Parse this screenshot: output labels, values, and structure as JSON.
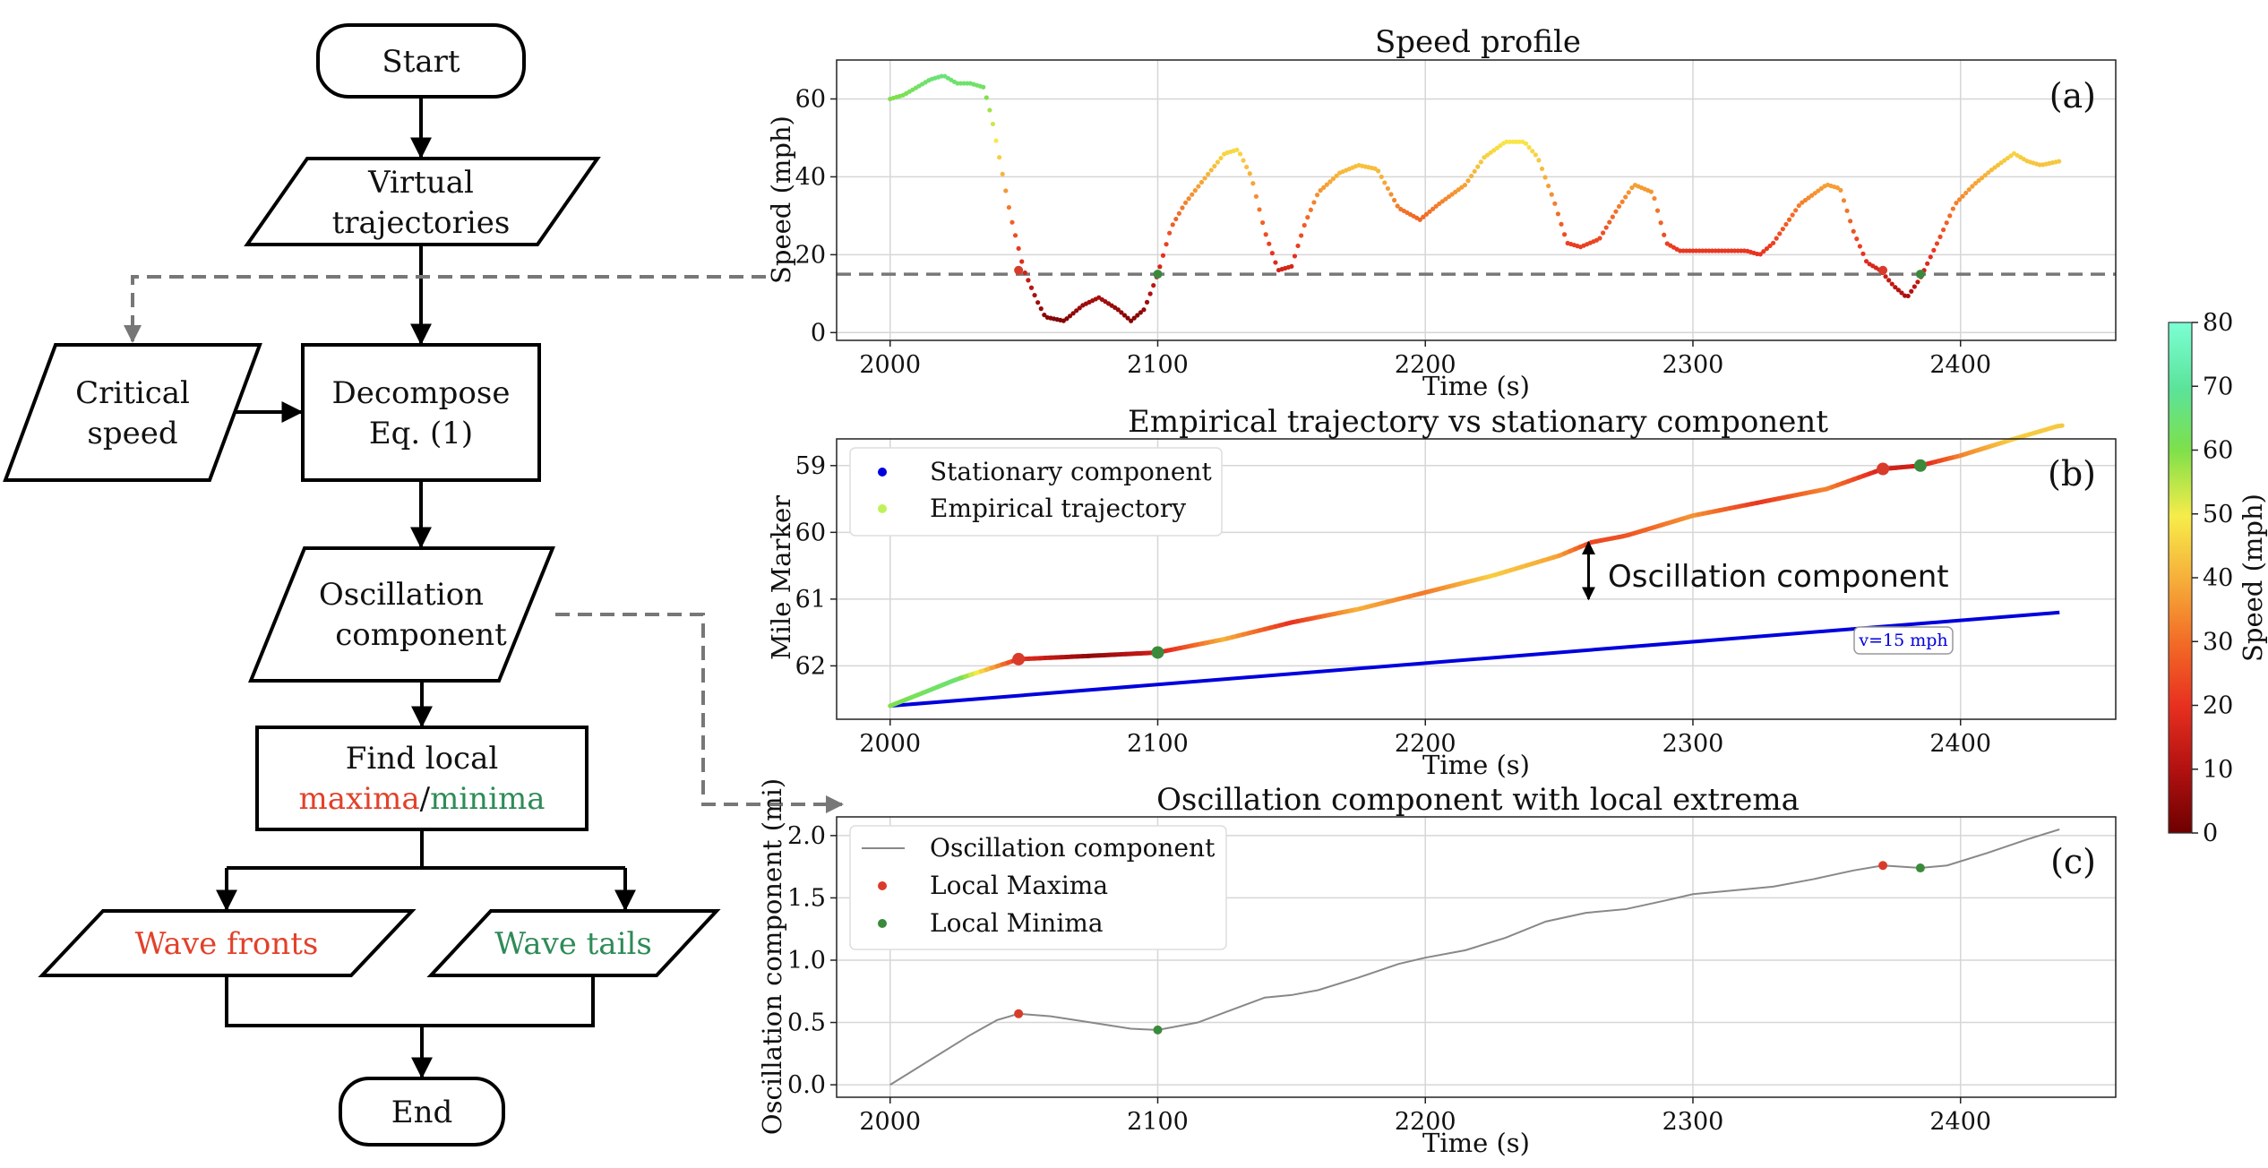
{
  "flowchart": {
    "start": "Start",
    "virtual_1": "Virtual",
    "virtual_2": "trajectories",
    "critical_1": "Critical",
    "critical_2": "speed",
    "decompose_1": "Decompose",
    "decompose_2": "Eq. (1)",
    "osc_1": "Oscillation",
    "osc_2": "component",
    "find_1": "Find local",
    "find_maxima": "maxima",
    "find_sep": "/",
    "find_minima": "minima",
    "fronts": "Wave fronts",
    "tails": "Wave tails",
    "end": "End"
  },
  "colors": {
    "maxima": "#e2412a",
    "minima": "#2e8b57",
    "stationary": "#0000dd",
    "oscillation_line": "#888888",
    "max_marker": "#d93b2b",
    "min_marker": "#3b8a3b",
    "dashed": "#777777"
  },
  "colorbar": {
    "label": "Speed (mph)",
    "min": 0,
    "max": 80,
    "ticks": [
      "0",
      "10",
      "20",
      "30",
      "40",
      "50",
      "60",
      "70",
      "80"
    ]
  },
  "chart_data": [
    {
      "type": "scatter",
      "panel": "(a)",
      "title": "Speed profile",
      "xlabel": "Time (s)",
      "ylabel": "Speed (mph)",
      "xlim": [
        1980,
        2458
      ],
      "ylim": [
        -2,
        70
      ],
      "xticks": [
        "2000",
        "2100",
        "2200",
        "2300",
        "2400"
      ],
      "yticks": [
        "0",
        "20",
        "40",
        "60"
      ],
      "critical_speed": 15,
      "x": [
        2000,
        2005,
        2010,
        2015,
        2020,
        2025,
        2030,
        2035,
        2038,
        2045,
        2050,
        2055,
        2058,
        2065,
        2072,
        2078,
        2085,
        2090,
        2095,
        2100,
        2105,
        2110,
        2118,
        2125,
        2130,
        2135,
        2140,
        2145,
        2150,
        2155,
        2160,
        2168,
        2175,
        2182,
        2190,
        2198,
        2205,
        2215,
        2222,
        2230,
        2237,
        2242,
        2248,
        2253,
        2258,
        2265,
        2272,
        2278,
        2285,
        2290,
        2295,
        2300,
        2310,
        2320,
        2325,
        2330,
        2340,
        2350,
        2355,
        2360,
        2365,
        2370,
        2375,
        2380,
        2385,
        2392,
        2398,
        2405,
        2412,
        2420,
        2425,
        2430,
        2437
      ],
      "y": [
        60,
        61,
        63,
        65,
        66,
        64,
        64,
        63,
        55,
        30,
        16,
        8,
        4,
        3,
        7,
        9,
        6,
        3,
        6,
        15,
        27,
        33,
        40,
        46,
        47,
        40,
        26,
        16,
        17,
        28,
        36,
        41,
        43,
        42,
        32,
        29,
        33,
        38,
        45,
        49,
        49,
        45,
        34,
        23,
        22,
        24,
        32,
        38,
        36,
        23,
        21,
        21,
        21,
        21,
        20,
        23,
        33,
        38,
        37,
        26,
        18,
        16,
        12,
        9,
        14,
        24,
        33,
        38,
        42,
        46,
        44,
        43,
        44
      ],
      "local_maxima": {
        "x": [
          2048,
          2371
        ],
        "y": [
          16,
          16
        ]
      },
      "local_minima": {
        "x": [
          2100,
          2385
        ],
        "y": [
          15,
          15
        ]
      }
    },
    {
      "type": "line",
      "panel": "(b)",
      "title": "Empirical trajectory vs stationary component",
      "xlabel": "Time (s)",
      "ylabel": "Mile Marker",
      "xlim": [
        1980,
        2458
      ],
      "ylim": [
        62.8,
        58.6
      ],
      "xticks": [
        "2000",
        "2100",
        "2200",
        "2300",
        "2400"
      ],
      "yticks": [
        "59",
        "60",
        "61",
        "62"
      ],
      "series": [
        {
          "name": "Stationary component",
          "x": [
            2000,
            2437
          ],
          "y": [
            62.6,
            61.2
          ]
        },
        {
          "name": "Empirical trajectory",
          "x": [
            2000,
            2025,
            2048,
            2075,
            2100,
            2125,
            2150,
            2175,
            2200,
            2225,
            2250,
            2262,
            2275,
            2300,
            2325,
            2350,
            2371,
            2385,
            2400,
            2420,
            2437
          ],
          "y": [
            62.6,
            62.2,
            61.9,
            61.85,
            61.8,
            61.6,
            61.35,
            61.15,
            60.9,
            60.65,
            60.35,
            60.15,
            60.05,
            59.75,
            59.55,
            59.35,
            59.05,
            59.0,
            58.85,
            58.6,
            58.4
          ],
          "speed": [
            60,
            65,
            20,
            5,
            15,
            40,
            20,
            40,
            32,
            45,
            38,
            24,
            26,
            36,
            21,
            34,
            16,
            15,
            33,
            45,
            44
          ]
        }
      ],
      "local_maxima": {
        "x": [
          2048,
          2371
        ],
        "y": [
          61.9,
          59.05
        ]
      },
      "local_minima": {
        "x": [
          2100,
          2385
        ],
        "y": [
          61.8,
          59.0
        ]
      },
      "annotation": "Oscillation component",
      "annotation_x": 2261,
      "annotation_y": [
        60.15,
        61.0
      ],
      "velocity_label": "v=15 mph"
    },
    {
      "type": "line",
      "panel": "(c)",
      "title": "Oscillation component with local extrema",
      "xlabel": "Time (s)",
      "ylabel": "Oscillation component (mi)",
      "xlim": [
        1980,
        2458
      ],
      "ylim": [
        -0.1,
        2.15
      ],
      "xticks": [
        "2000",
        "2100",
        "2200",
        "2300",
        "2400"
      ],
      "yticks": [
        "0.0",
        "0.5",
        "1.0",
        "1.5",
        "2.0"
      ],
      "series": [
        {
          "name": "Oscillation component",
          "x": [
            2000,
            2015,
            2030,
            2040,
            2048,
            2060,
            2075,
            2090,
            2100,
            2115,
            2130,
            2140,
            2150,
            2160,
            2175,
            2190,
            2200,
            2215,
            2230,
            2245,
            2260,
            2275,
            2290,
            2300,
            2315,
            2330,
            2345,
            2360,
            2371,
            2385,
            2395,
            2410,
            2425,
            2437
          ],
          "y": [
            0.0,
            0.2,
            0.4,
            0.52,
            0.57,
            0.55,
            0.5,
            0.45,
            0.44,
            0.5,
            0.62,
            0.7,
            0.72,
            0.76,
            0.86,
            0.97,
            1.02,
            1.08,
            1.18,
            1.31,
            1.38,
            1.41,
            1.48,
            1.53,
            1.56,
            1.59,
            1.65,
            1.72,
            1.76,
            1.74,
            1.76,
            1.86,
            1.97,
            2.05
          ]
        }
      ],
      "local_maxima": {
        "name": "Local Maxima",
        "x": [
          2048,
          2371
        ],
        "y": [
          0.57,
          1.76
        ]
      },
      "local_minima": {
        "name": "Local Minima",
        "x": [
          2100,
          2385
        ],
        "y": [
          0.44,
          1.74
        ]
      }
    }
  ]
}
